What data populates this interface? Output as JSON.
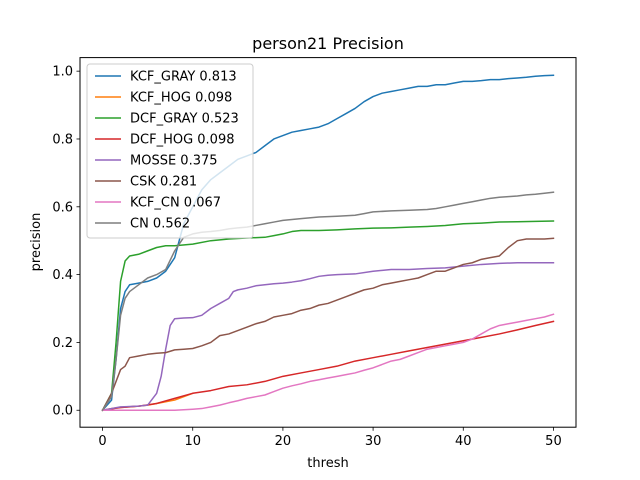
{
  "chart_data": {
    "type": "line",
    "title": "person21 Precision",
    "xlabel": "thresh",
    "ylabel": "precision",
    "xlim": [
      -2.5,
      52.5
    ],
    "ylim": [
      -0.05,
      1.04
    ],
    "xticks": [
      0,
      10,
      20,
      30,
      40,
      50
    ],
    "yticks": [
      0.0,
      0.2,
      0.4,
      0.6,
      0.8,
      1.0
    ],
    "xtick_labels": [
      "0",
      "10",
      "20",
      "30",
      "40",
      "50"
    ],
    "ytick_labels": [
      "0.0",
      "0.2",
      "0.4",
      "0.6",
      "0.8",
      "1.0"
    ],
    "grid": false,
    "legend_position": "upper-left",
    "series": [
      {
        "name": "KCF_GRAY 0.813",
        "color": "#1f77b4",
        "points": [
          [
            0,
            0
          ],
          [
            1,
            0.03
          ],
          [
            1.5,
            0.15
          ],
          [
            2,
            0.3
          ],
          [
            2.5,
            0.35
          ],
          [
            3,
            0.37
          ],
          [
            4,
            0.375
          ],
          [
            5,
            0.38
          ],
          [
            6,
            0.39
          ],
          [
            7,
            0.41
          ],
          [
            8,
            0.45
          ],
          [
            9,
            0.55
          ],
          [
            10,
            0.6
          ],
          [
            11,
            0.65
          ],
          [
            12,
            0.68
          ],
          [
            13,
            0.7
          ],
          [
            14,
            0.72
          ],
          [
            15,
            0.74
          ],
          [
            16,
            0.75
          ],
          [
            17,
            0.76
          ],
          [
            18,
            0.78
          ],
          [
            19,
            0.8
          ],
          [
            20,
            0.81
          ],
          [
            21,
            0.82
          ],
          [
            22,
            0.825
          ],
          [
            23,
            0.83
          ],
          [
            24,
            0.835
          ],
          [
            25,
            0.845
          ],
          [
            26,
            0.86
          ],
          [
            27,
            0.875
          ],
          [
            28,
            0.89
          ],
          [
            29,
            0.91
          ],
          [
            30,
            0.925
          ],
          [
            31,
            0.935
          ],
          [
            32,
            0.94
          ],
          [
            33,
            0.945
          ],
          [
            34,
            0.95
          ],
          [
            35,
            0.955
          ],
          [
            36,
            0.955
          ],
          [
            37,
            0.96
          ],
          [
            38,
            0.96
          ],
          [
            39,
            0.965
          ],
          [
            40,
            0.97
          ],
          [
            41,
            0.97
          ],
          [
            42,
            0.972
          ],
          [
            43,
            0.975
          ],
          [
            44,
            0.975
          ],
          [
            45,
            0.978
          ],
          [
            46,
            0.98
          ],
          [
            47,
            0.982
          ],
          [
            48,
            0.985
          ],
          [
            49,
            0.987
          ],
          [
            50,
            0.988
          ]
        ]
      },
      {
        "name": "KCF_HOG 0.098",
        "color": "#ff7f0e",
        "points": [
          [
            0,
            0
          ],
          [
            1,
            0.005
          ],
          [
            2,
            0.008
          ],
          [
            3,
            0.01
          ],
          [
            4,
            0.012
          ],
          [
            5,
            0.015
          ],
          [
            6,
            0.02
          ],
          [
            7,
            0.025
          ],
          [
            8,
            0.03
          ],
          [
            9,
            0.04
          ],
          [
            10,
            0.05
          ]
        ]
      },
      {
        "name": "DCF_GRAY 0.523",
        "color": "#2ca02c",
        "points": [
          [
            0,
            0
          ],
          [
            1,
            0.05
          ],
          [
            1.5,
            0.2
          ],
          [
            2,
            0.38
          ],
          [
            2.5,
            0.44
          ],
          [
            3,
            0.455
          ],
          [
            4,
            0.46
          ],
          [
            5,
            0.47
          ],
          [
            6,
            0.48
          ],
          [
            7,
            0.485
          ],
          [
            8,
            0.485
          ],
          [
            10,
            0.49
          ],
          [
            12,
            0.5
          ],
          [
            14,
            0.505
          ],
          [
            16,
            0.508
          ],
          [
            18,
            0.51
          ],
          [
            19,
            0.515
          ],
          [
            20,
            0.52
          ],
          [
            21,
            0.527
          ],
          [
            22,
            0.53
          ],
          [
            24,
            0.53
          ],
          [
            26,
            0.532
          ],
          [
            28,
            0.535
          ],
          [
            30,
            0.537
          ],
          [
            32,
            0.538
          ],
          [
            34,
            0.54
          ],
          [
            36,
            0.542
          ],
          [
            38,
            0.545
          ],
          [
            40,
            0.55
          ],
          [
            42,
            0.552
          ],
          [
            44,
            0.555
          ],
          [
            46,
            0.556
          ],
          [
            48,
            0.557
          ],
          [
            50,
            0.558
          ]
        ]
      },
      {
        "name": "DCF_HOG 0.098",
        "color": "#d62728",
        "points": [
          [
            0,
            0
          ],
          [
            2,
            0.008
          ],
          [
            4,
            0.012
          ],
          [
            6,
            0.02
          ],
          [
            8,
            0.035
          ],
          [
            10,
            0.05
          ],
          [
            12,
            0.058
          ],
          [
            14,
            0.07
          ],
          [
            16,
            0.075
          ],
          [
            18,
            0.085
          ],
          [
            20,
            0.1
          ],
          [
            22,
            0.11
          ],
          [
            24,
            0.12
          ],
          [
            26,
            0.13
          ],
          [
            28,
            0.145
          ],
          [
            30,
            0.155
          ],
          [
            32,
            0.165
          ],
          [
            34,
            0.175
          ],
          [
            36,
            0.185
          ],
          [
            38,
            0.195
          ],
          [
            40,
            0.205
          ],
          [
            42,
            0.215
          ],
          [
            44,
            0.225
          ],
          [
            46,
            0.237
          ],
          [
            48,
            0.25
          ],
          [
            50,
            0.262
          ]
        ]
      },
      {
        "name": "MOSSE 0.375",
        "color": "#9467bd",
        "points": [
          [
            0,
            0
          ],
          [
            2,
            0.01
          ],
          [
            4,
            0.012
          ],
          [
            5,
            0.015
          ],
          [
            6,
            0.05
          ],
          [
            6.5,
            0.1
          ],
          [
            7,
            0.18
          ],
          [
            7.5,
            0.25
          ],
          [
            8,
            0.27
          ],
          [
            9,
            0.272
          ],
          [
            10,
            0.273
          ],
          [
            11,
            0.28
          ],
          [
            12,
            0.3
          ],
          [
            13,
            0.315
          ],
          [
            14,
            0.33
          ],
          [
            14.5,
            0.35
          ],
          [
            15,
            0.355
          ],
          [
            16,
            0.36
          ],
          [
            17,
            0.367
          ],
          [
            18,
            0.37
          ],
          [
            19,
            0.373
          ],
          [
            20,
            0.375
          ],
          [
            21,
            0.378
          ],
          [
            22,
            0.382
          ],
          [
            23,
            0.388
          ],
          [
            24,
            0.395
          ],
          [
            25,
            0.398
          ],
          [
            26,
            0.4
          ],
          [
            28,
            0.402
          ],
          [
            30,
            0.41
          ],
          [
            32,
            0.415
          ],
          [
            34,
            0.415
          ],
          [
            36,
            0.418
          ],
          [
            38,
            0.42
          ],
          [
            40,
            0.425
          ],
          [
            42,
            0.43
          ],
          [
            44,
            0.433
          ],
          [
            46,
            0.435
          ],
          [
            48,
            0.435
          ],
          [
            50,
            0.435
          ]
        ]
      },
      {
        "name": "CSK 0.281",
        "color": "#8c564b",
        "points": [
          [
            0,
            0
          ],
          [
            1,
            0.05
          ],
          [
            2,
            0.12
          ],
          [
            2.5,
            0.13
          ],
          [
            3,
            0.155
          ],
          [
            4,
            0.16
          ],
          [
            5,
            0.165
          ],
          [
            6,
            0.168
          ],
          [
            7,
            0.17
          ],
          [
            8,
            0.178
          ],
          [
            9,
            0.18
          ],
          [
            10,
            0.182
          ],
          [
            11,
            0.19
          ],
          [
            12,
            0.2
          ],
          [
            13,
            0.22
          ],
          [
            14,
            0.225
          ],
          [
            15,
            0.235
          ],
          [
            16,
            0.245
          ],
          [
            17,
            0.255
          ],
          [
            18,
            0.262
          ],
          [
            19,
            0.275
          ],
          [
            20,
            0.28
          ],
          [
            21,
            0.285
          ],
          [
            22,
            0.295
          ],
          [
            23,
            0.3
          ],
          [
            24,
            0.31
          ],
          [
            25,
            0.315
          ],
          [
            26,
            0.325
          ],
          [
            27,
            0.335
          ],
          [
            28,
            0.345
          ],
          [
            29,
            0.355
          ],
          [
            30,
            0.36
          ],
          [
            31,
            0.37
          ],
          [
            32,
            0.375
          ],
          [
            33,
            0.38
          ],
          [
            34,
            0.385
          ],
          [
            35,
            0.39
          ],
          [
            36,
            0.4
          ],
          [
            37,
            0.41
          ],
          [
            38,
            0.41
          ],
          [
            39,
            0.42
          ],
          [
            40,
            0.43
          ],
          [
            41,
            0.435
          ],
          [
            42,
            0.445
          ],
          [
            43,
            0.45
          ],
          [
            44,
            0.455
          ],
          [
            45,
            0.48
          ],
          [
            46,
            0.5
          ],
          [
            47,
            0.505
          ],
          [
            48,
            0.505
          ],
          [
            49,
            0.505
          ],
          [
            50,
            0.507
          ]
        ]
      },
      {
        "name": "KCF_CN 0.067",
        "color": "#e377c2",
        "points": [
          [
            0,
            0
          ],
          [
            2,
            0
          ],
          [
            4,
            0
          ],
          [
            6,
            0
          ],
          [
            8,
            0
          ],
          [
            10,
            0.003
          ],
          [
            11,
            0.005
          ],
          [
            12,
            0.01
          ],
          [
            13,
            0.015
          ],
          [
            14,
            0.022
          ],
          [
            15,
            0.028
          ],
          [
            16,
            0.035
          ],
          [
            17,
            0.04
          ],
          [
            18,
            0.045
          ],
          [
            19,
            0.055
          ],
          [
            20,
            0.065
          ],
          [
            21,
            0.072
          ],
          [
            22,
            0.078
          ],
          [
            23,
            0.085
          ],
          [
            24,
            0.09
          ],
          [
            25,
            0.095
          ],
          [
            26,
            0.1
          ],
          [
            27,
            0.105
          ],
          [
            28,
            0.11
          ],
          [
            29,
            0.118
          ],
          [
            30,
            0.125
          ],
          [
            31,
            0.135
          ],
          [
            32,
            0.145
          ],
          [
            33,
            0.15
          ],
          [
            34,
            0.16
          ],
          [
            35,
            0.17
          ],
          [
            36,
            0.18
          ],
          [
            37,
            0.185
          ],
          [
            38,
            0.19
          ],
          [
            39,
            0.195
          ],
          [
            40,
            0.2
          ],
          [
            41,
            0.21
          ],
          [
            42,
            0.225
          ],
          [
            43,
            0.24
          ],
          [
            44,
            0.25
          ],
          [
            45,
            0.255
          ],
          [
            46,
            0.26
          ],
          [
            47,
            0.265
          ],
          [
            48,
            0.27
          ],
          [
            49,
            0.275
          ],
          [
            50,
            0.283
          ]
        ]
      },
      {
        "name": "CN 0.562",
        "color": "#7f7f7f",
        "points": [
          [
            0,
            0
          ],
          [
            1,
            0.04
          ],
          [
            1.5,
            0.15
          ],
          [
            2,
            0.28
          ],
          [
            2.5,
            0.33
          ],
          [
            3,
            0.35
          ],
          [
            4,
            0.37
          ],
          [
            5,
            0.39
          ],
          [
            6,
            0.4
          ],
          [
            7,
            0.415
          ],
          [
            8,
            0.47
          ],
          [
            9,
            0.51
          ],
          [
            10,
            0.52
          ],
          [
            11,
            0.525
          ],
          [
            12,
            0.527
          ],
          [
            13,
            0.53
          ],
          [
            14,
            0.535
          ],
          [
            15,
            0.538
          ],
          [
            16,
            0.54
          ],
          [
            17,
            0.545
          ],
          [
            18,
            0.55
          ],
          [
            19,
            0.555
          ],
          [
            20,
            0.56
          ],
          [
            22,
            0.565
          ],
          [
            24,
            0.57
          ],
          [
            26,
            0.572
          ],
          [
            28,
            0.575
          ],
          [
            29,
            0.58
          ],
          [
            30,
            0.585
          ],
          [
            32,
            0.588
          ],
          [
            34,
            0.59
          ],
          [
            36,
            0.592
          ],
          [
            37,
            0.595
          ],
          [
            38,
            0.6
          ],
          [
            39,
            0.605
          ],
          [
            40,
            0.61
          ],
          [
            41,
            0.615
          ],
          [
            42,
            0.62
          ],
          [
            43,
            0.625
          ],
          [
            44,
            0.628
          ],
          [
            45,
            0.63
          ],
          [
            46,
            0.632
          ],
          [
            47,
            0.635
          ],
          [
            48,
            0.637
          ],
          [
            49,
            0.64
          ],
          [
            50,
            0.643
          ]
        ]
      }
    ]
  }
}
